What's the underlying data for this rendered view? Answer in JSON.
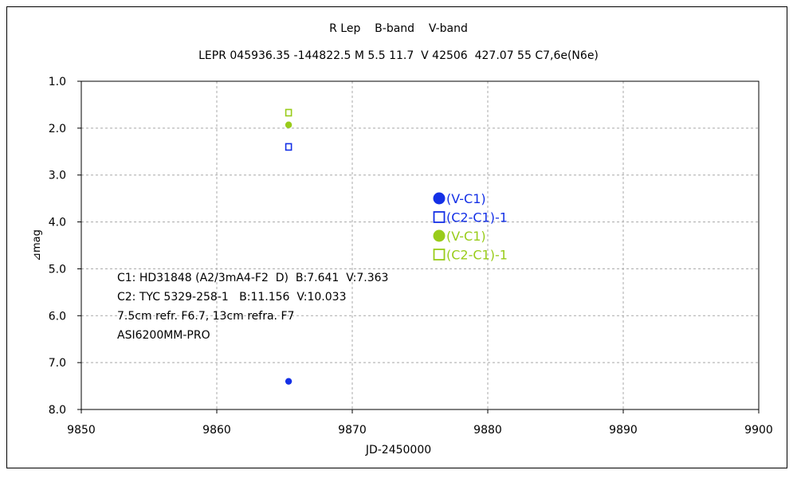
{
  "chart_data": {
    "type": "scatter",
    "title_line1": "R Lep    B-band    V-band",
    "title_line2": "LEPR 045936.35 -144822.5 M 5.5 11.7  V 42506  427.07 55 C7,6e(N6e)",
    "xlabel": "JD-2450000",
    "ylabel": "⊿mag",
    "xlim": [
      9850,
      9900
    ],
    "ylim": [
      1.0,
      8.0
    ],
    "y_inverted": true,
    "grid": true,
    "x_ticks": [
      "9850",
      "9860",
      "9870",
      "9880",
      "9890",
      "9900"
    ],
    "y_ticks": [
      "1.0",
      "2.0",
      "3.0",
      "4.0",
      "5.0",
      "6.0",
      "7.0",
      "8.0"
    ],
    "legend_position": "center-right",
    "series": [
      {
        "name": "(V-C1)",
        "band": "B",
        "marker": "filled-circle",
        "color": "#1430e6",
        "points": [
          {
            "x": 9865.3,
            "y": 7.4
          }
        ]
      },
      {
        "name": "(C2-C1)-1",
        "band": "B",
        "marker": "open-square",
        "color": "#1430e6",
        "points": [
          {
            "x": 9865.3,
            "y": 2.4
          }
        ]
      },
      {
        "name": "(V-C1)",
        "band": "V",
        "marker": "filled-circle",
        "color": "#99cc1a",
        "points": [
          {
            "x": 9865.3,
            "y": 1.93
          }
        ]
      },
      {
        "name": "(C2-C1)-1",
        "band": "V",
        "marker": "open-square",
        "color": "#99cc1a",
        "points": [
          {
            "x": 9865.3,
            "y": 1.67
          }
        ]
      }
    ],
    "annotations": [
      "C1: HD31848 (A2/3mA4-F2  D)  B:7.641  V:7.363",
      "C2: TYC 5329-258-1   B:11.156  V:10.033",
      "7.5cm refr. F6.7, 13cm refra. F7",
      "ASI6200MM-PRO"
    ]
  }
}
